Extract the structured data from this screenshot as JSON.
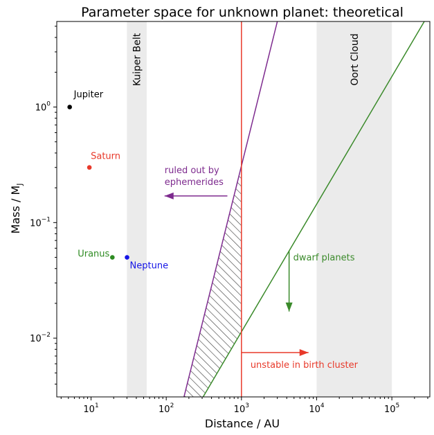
{
  "chart_data": {
    "type": "scatter",
    "title": "Parameter space for unknown planet: theoretical",
    "xlabel": "Distance / AU",
    "ylabel": "Mass / M",
    "ylabel_sub": "J",
    "x_scale": "log",
    "y_scale": "log",
    "xlim": [
      3.5,
      320000
    ],
    "ylim": [
      0.0031,
      5.5
    ],
    "x_ticks": [
      {
        "value": 10,
        "base": "10",
        "exp": "1"
      },
      {
        "value": 100,
        "base": "10",
        "exp": "2"
      },
      {
        "value": 1000,
        "base": "10",
        "exp": "3"
      },
      {
        "value": 10000,
        "base": "10",
        "exp": "4"
      },
      {
        "value": 100000,
        "base": "10",
        "exp": "5"
      }
    ],
    "y_ticks": [
      {
        "value": 1,
        "base": "10",
        "exp": "0"
      },
      {
        "value": 0.1,
        "base": "10",
        "exp": "−1"
      },
      {
        "value": 0.01,
        "base": "10",
        "exp": "−2"
      }
    ],
    "grid": false,
    "bands": [
      {
        "name": "Kuiper Belt",
        "x": [
          30,
          55
        ],
        "color": "#ebebeb"
      },
      {
        "name": "Oort Cloud",
        "x": [
          10000,
          100000
        ],
        "color": "#ebebeb"
      }
    ],
    "planets": [
      {
        "name": "Jupiter",
        "x": 5.2,
        "y": 1.0,
        "color": "#000000"
      },
      {
        "name": "Saturn",
        "x": 9.5,
        "y": 0.3,
        "color": "#e8392a"
      },
      {
        "name": "Uranus",
        "x": 19.2,
        "y": 0.05,
        "color": "#2e8b22"
      },
      {
        "name": "Neptune",
        "x": 30.1,
        "y": 0.05,
        "color": "#1515e6"
      }
    ],
    "lines": [
      {
        "name": "ephemerides",
        "color": "#7d2a8e",
        "points": [
          [
            170,
            0.003
          ],
          [
            3000,
            5.5
          ]
        ]
      },
      {
        "name": "dwarf planets",
        "color": "#3a8a2a",
        "points": [
          [
            300,
            0.003
          ],
          [
            270000,
            5.5
          ]
        ]
      },
      {
        "name": "birth cluster",
        "color": "#e8392a",
        "vertical_x": 1000
      }
    ],
    "hatched_region": {
      "between": [
        "ephemerides",
        "dwarf planets"
      ],
      "x_max": 1000
    },
    "annotations": [
      {
        "text_lines": [
          "ruled out by",
          "ephemerides"
        ],
        "color": "#7d2a8e",
        "arrow_from": [
          650,
          0.17
        ],
        "arrow_to": [
          95,
          0.17
        ]
      },
      {
        "text_lines": [
          "dwarf planets"
        ],
        "color": "#3a8a2a",
        "arrow_from": [
          4300,
          0.057
        ],
        "arrow_to": [
          4300,
          0.017
        ]
      },
      {
        "text_lines": [
          "unstable in birth cluster"
        ],
        "color": "#e8392a",
        "arrow_from": [
          1000,
          0.0075
        ],
        "arrow_to": [
          7800,
          0.0075
        ]
      }
    ]
  }
}
